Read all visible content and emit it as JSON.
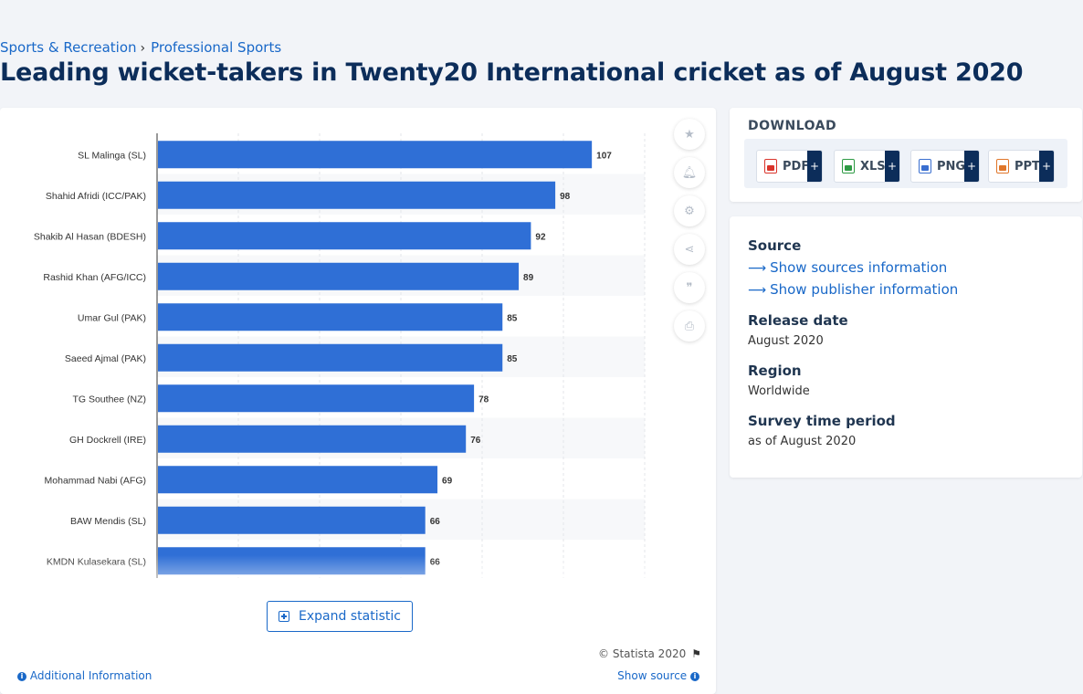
{
  "breadcrumb": {
    "items": [
      "Sports & Recreation",
      "Professional Sports"
    ],
    "separator": "›"
  },
  "page_title": "Leading wicket-takers in Twenty20 International cricket as of August 2020",
  "chart_data": {
    "type": "bar",
    "orientation": "horizontal",
    "categories": [
      "SL Malinga (SL)",
      "Shahid Afridi (ICC/PAK)",
      "Shakib Al Hasan (BDESH)",
      "Rashid Khan (AFG/ICC)",
      "Umar Gul (PAK)",
      "Saeed Ajmal (PAK)",
      "TG Southee (NZ)",
      "GH Dockrell (IRE)",
      "Mohammad Nabi (AFG)",
      "BAW Mendis (SL)",
      "KMDN Kulasekara (SL)"
    ],
    "values": [
      107,
      98,
      92,
      89,
      85,
      85,
      78,
      76,
      69,
      66,
      66
    ],
    "title": "",
    "xlabel": "",
    "ylabel": "",
    "xlim": [
      0,
      120
    ],
    "grid": true,
    "bar_color": "#2f6fd6",
    "data_labels": true
  },
  "tools": [
    {
      "name": "favorite-icon",
      "glyph": "★"
    },
    {
      "name": "bell-icon",
      "glyph": "🔔︎"
    },
    {
      "name": "gear-icon",
      "glyph": "⚙"
    },
    {
      "name": "share-icon",
      "glyph": "⋖"
    },
    {
      "name": "quote-icon",
      "glyph": "❞"
    },
    {
      "name": "print-icon",
      "glyph": "⎙"
    }
  ],
  "expand_label": "Expand statistic",
  "copyright": "© Statista 2020",
  "additional_info": "Additional Information",
  "show_source": "Show source",
  "download": {
    "title": "DOWNLOAD",
    "plus": "+",
    "buttons": [
      {
        "label": "PDF",
        "color": "#d9342b"
      },
      {
        "label": "XLS",
        "color": "#2e9a44"
      },
      {
        "label": "PNG",
        "color": "#3a6fd0"
      },
      {
        "label": "PPT",
        "color": "#e0762a"
      }
    ]
  },
  "info": {
    "source_heading": "Source",
    "show_sources": "Show sources information",
    "show_publisher": "Show publisher information",
    "release_heading": "Release date",
    "release_value": "August 2020",
    "region_heading": "Region",
    "region_value": "Worldwide",
    "survey_heading": "Survey time period",
    "survey_value": "as of August 2020"
  }
}
